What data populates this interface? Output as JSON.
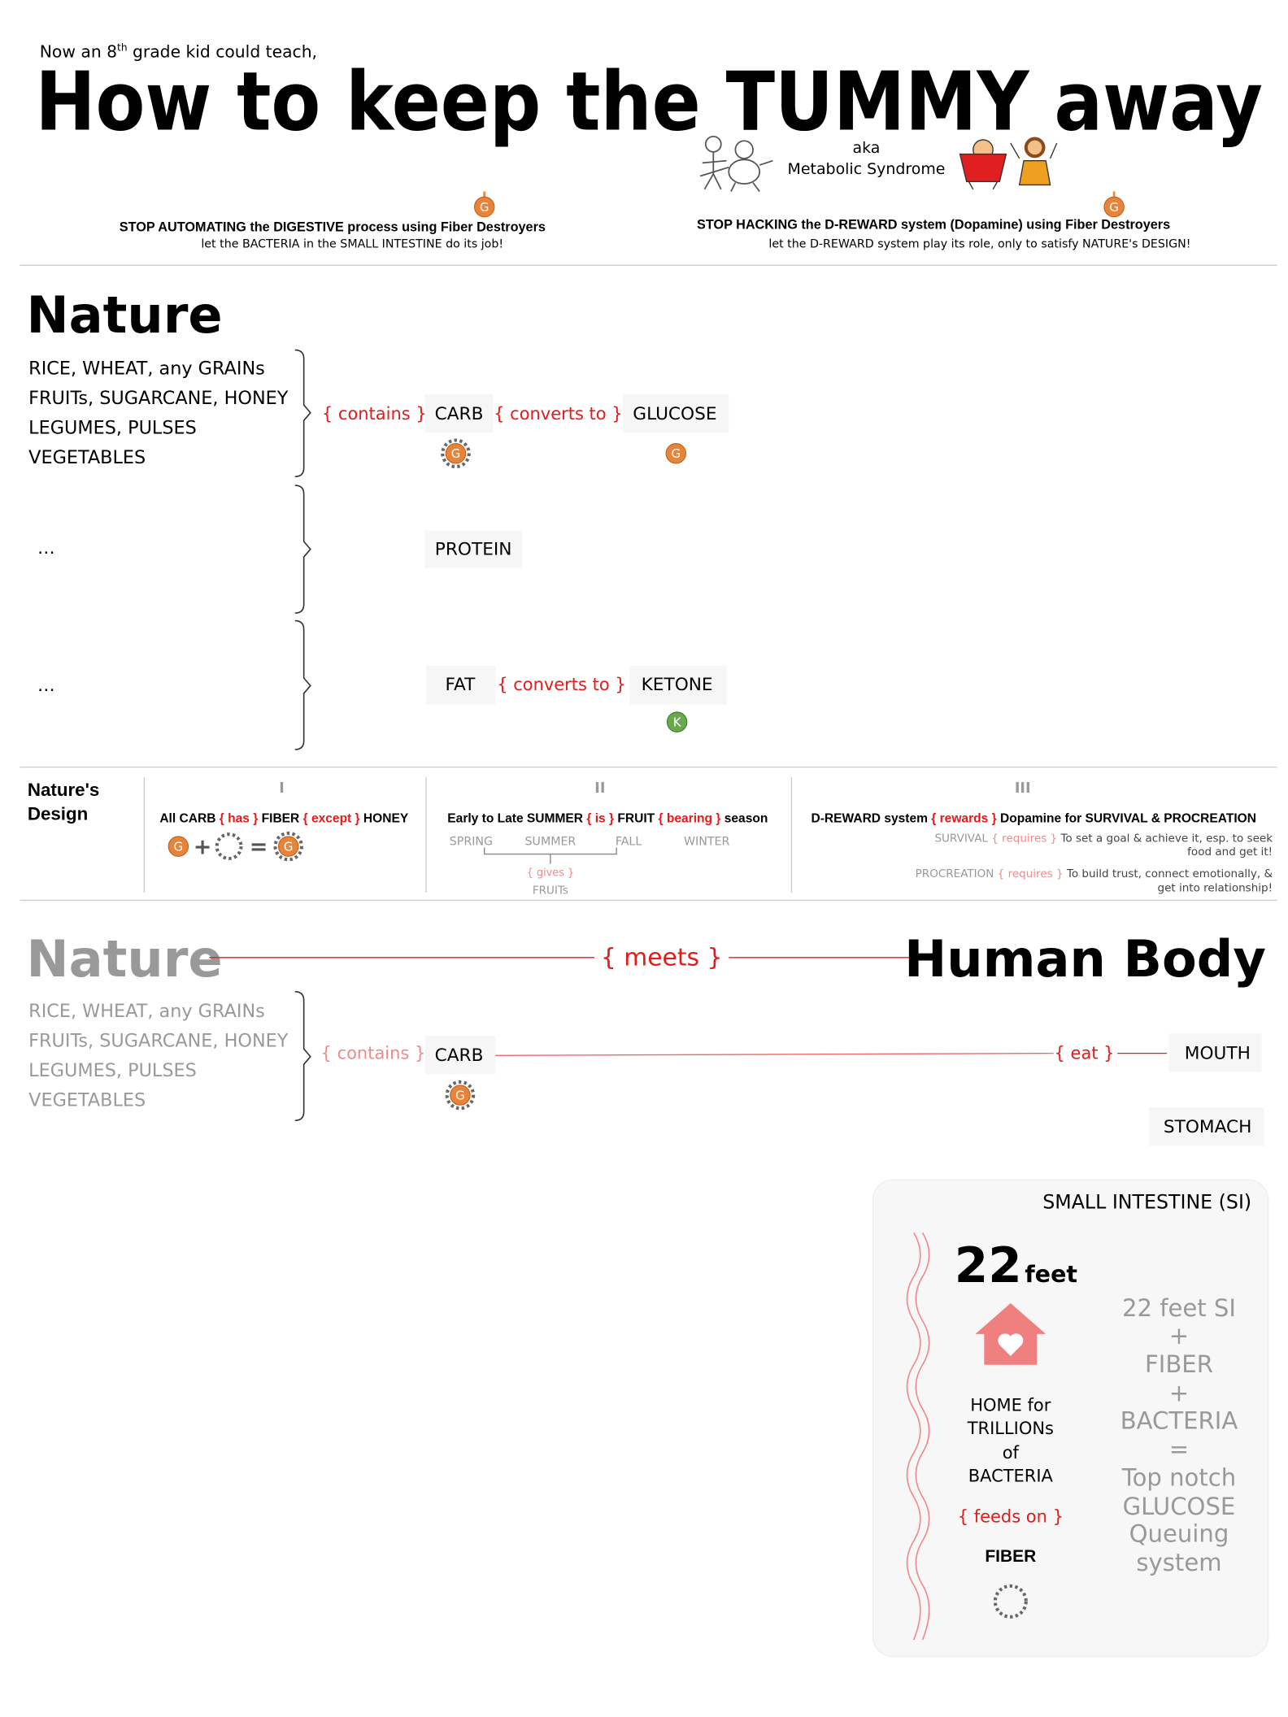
{
  "header": {
    "intro": [
      "Now an 8",
      "th",
      "grade kid could teach,"
    ],
    "title": "How to keep the TUMMY away",
    "aka": "aka",
    "aka_name": "Metabolic Syndrome",
    "left_goal": "STOP AUTOMATING the DIGESTIVE process using Fiber Destroyers",
    "left_sub": "let the BACTERIA in the SMALL INTESTINE do its job!",
    "right_goal": "STOP HACKING the D-REWARD system (Dopamine) using Fiber Destroyers",
    "right_sub": "let the D-REWARD system play its role, only to satisfy NATURE's DESIGN!"
  },
  "icons": {
    "glucose": "G",
    "ketone": "K",
    "plus": "+",
    "equals": "="
  },
  "nature": {
    "heading": "Nature",
    "sources": [
      "RICE, WHEAT, any GRAINs",
      "FRUITs, SUGARCANE, HONEY",
      "LEGUMES, PULSES",
      "VEGETABLES"
    ],
    "carb": {
      "relation": "{ contains }",
      "item": "CARB",
      "converts": "{ converts to }",
      "result": "GLUCOSE"
    },
    "protein": {
      "source": "…",
      "item": "PROTEIN"
    },
    "fat": {
      "source": "…",
      "item": "FAT",
      "converts": "{ converts to }",
      "result": "KETONE"
    }
  },
  "design": {
    "heading": [
      "Nature's",
      "Design"
    ],
    "columns": [
      {
        "numeral": "I",
        "statement": [
          "All CARB",
          "{ has }",
          "FIBER",
          "{ except }",
          "HONEY"
        ]
      },
      {
        "numeral": "II",
        "statement": [
          "Early to Late SUMMER",
          "{ is }",
          "FRUIT",
          "{ bearing }",
          "season"
        ],
        "seasons": [
          "SPRING",
          "SUMMER",
          "FALL",
          "WINTER"
        ],
        "gives": "{ gives }",
        "gift": "FRUITs"
      },
      {
        "numeral": "III",
        "statement": [
          "D-REWARD system",
          "{ rewards }",
          "Dopamine for SURVIVAL & PROCREATION"
        ],
        "needs": [
          {
            "name": "SURVIVAL",
            "relation": "{ requires }",
            "lines": [
              "To set a goal & achieve it, esp. to seek",
              "food and get it!"
            ]
          },
          {
            "name": "PROCREATION",
            "relation": "{ requires }",
            "lines": [
              "To build trust, connect emotionally, &",
              "get into relationship!"
            ]
          }
        ]
      }
    ]
  },
  "meets": {
    "left": "Nature",
    "relation": "{ meets }",
    "right": "Human Body",
    "contains": "{ contains }",
    "item": "CARB",
    "eat": "{ eat }",
    "mouth": "MOUTH",
    "stomach": "STOMACH",
    "card": {
      "title": "SMALL INTESTINE (SI)",
      "length": "22",
      "unit": "feet",
      "home": [
        "HOME for",
        "TRILLIONs",
        "of",
        "BACTERIA"
      ],
      "feeds": "{ feeds on }",
      "food": "FIBER",
      "equation": [
        "22 feet SI",
        "+",
        "FIBER",
        "+",
        "BACTERIA",
        "=",
        "Top notch",
        "GLUCOSE",
        "Queuing",
        "system"
      ]
    }
  }
}
